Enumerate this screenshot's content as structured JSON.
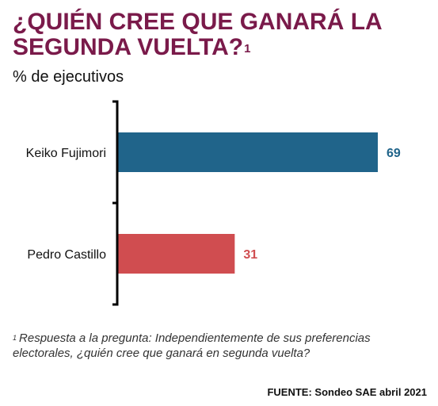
{
  "title": {
    "text": "¿QUIÉN CREE QUE GANARÁ LA SEGUNDA VUELTA?",
    "footnote_marker": "1"
  },
  "subtitle": "% de ejecutivos",
  "chart_data": {
    "type": "bar",
    "orientation": "horizontal",
    "categories": [
      "Keiko Fujimori",
      "Pedro Castillo"
    ],
    "values": [
      69,
      31
    ],
    "colors": [
      "#20648a",
      "#d04d50"
    ],
    "value_label_colors": [
      "#20648a",
      "#d04d50"
    ],
    "xlim": [
      0,
      69
    ],
    "grid": false,
    "legend": "none"
  },
  "footnote": {
    "marker": "1",
    "text": "Respuesta a la pregunta: Independientemente de sus preferencias electorales, ¿quién cree que ganará en segunda vuelta?"
  },
  "source": "FUENTE: Sondeo SAE abril 2021"
}
